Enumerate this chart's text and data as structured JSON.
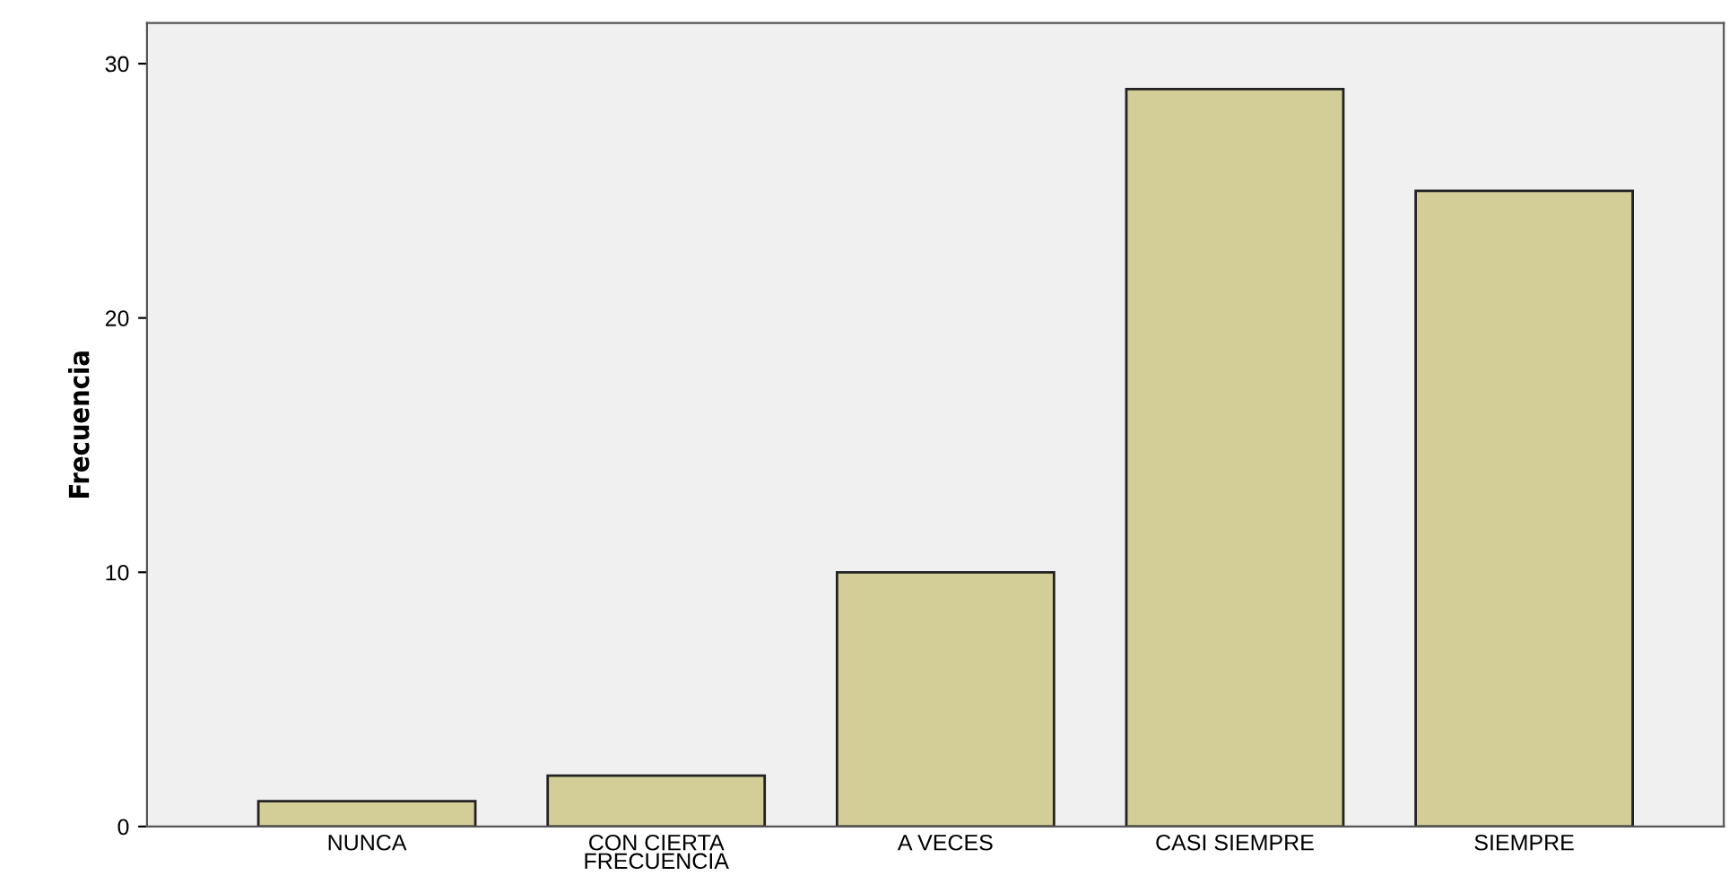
{
  "chart_data": {
    "type": "bar",
    "ylabel": "Frecuencia",
    "categories": [
      "NUNCA",
      "CON CIERTA\nFRECUENCIA",
      "A VECES",
      "CASI SIEMPRE",
      "SIEMPRE"
    ],
    "values": [
      1,
      2,
      10,
      29,
      25
    ],
    "color": "#d3ce97",
    "ylim": [
      0,
      31.6
    ],
    "yticks": [
      0,
      10,
      20,
      30
    ],
    "grid": false
  }
}
